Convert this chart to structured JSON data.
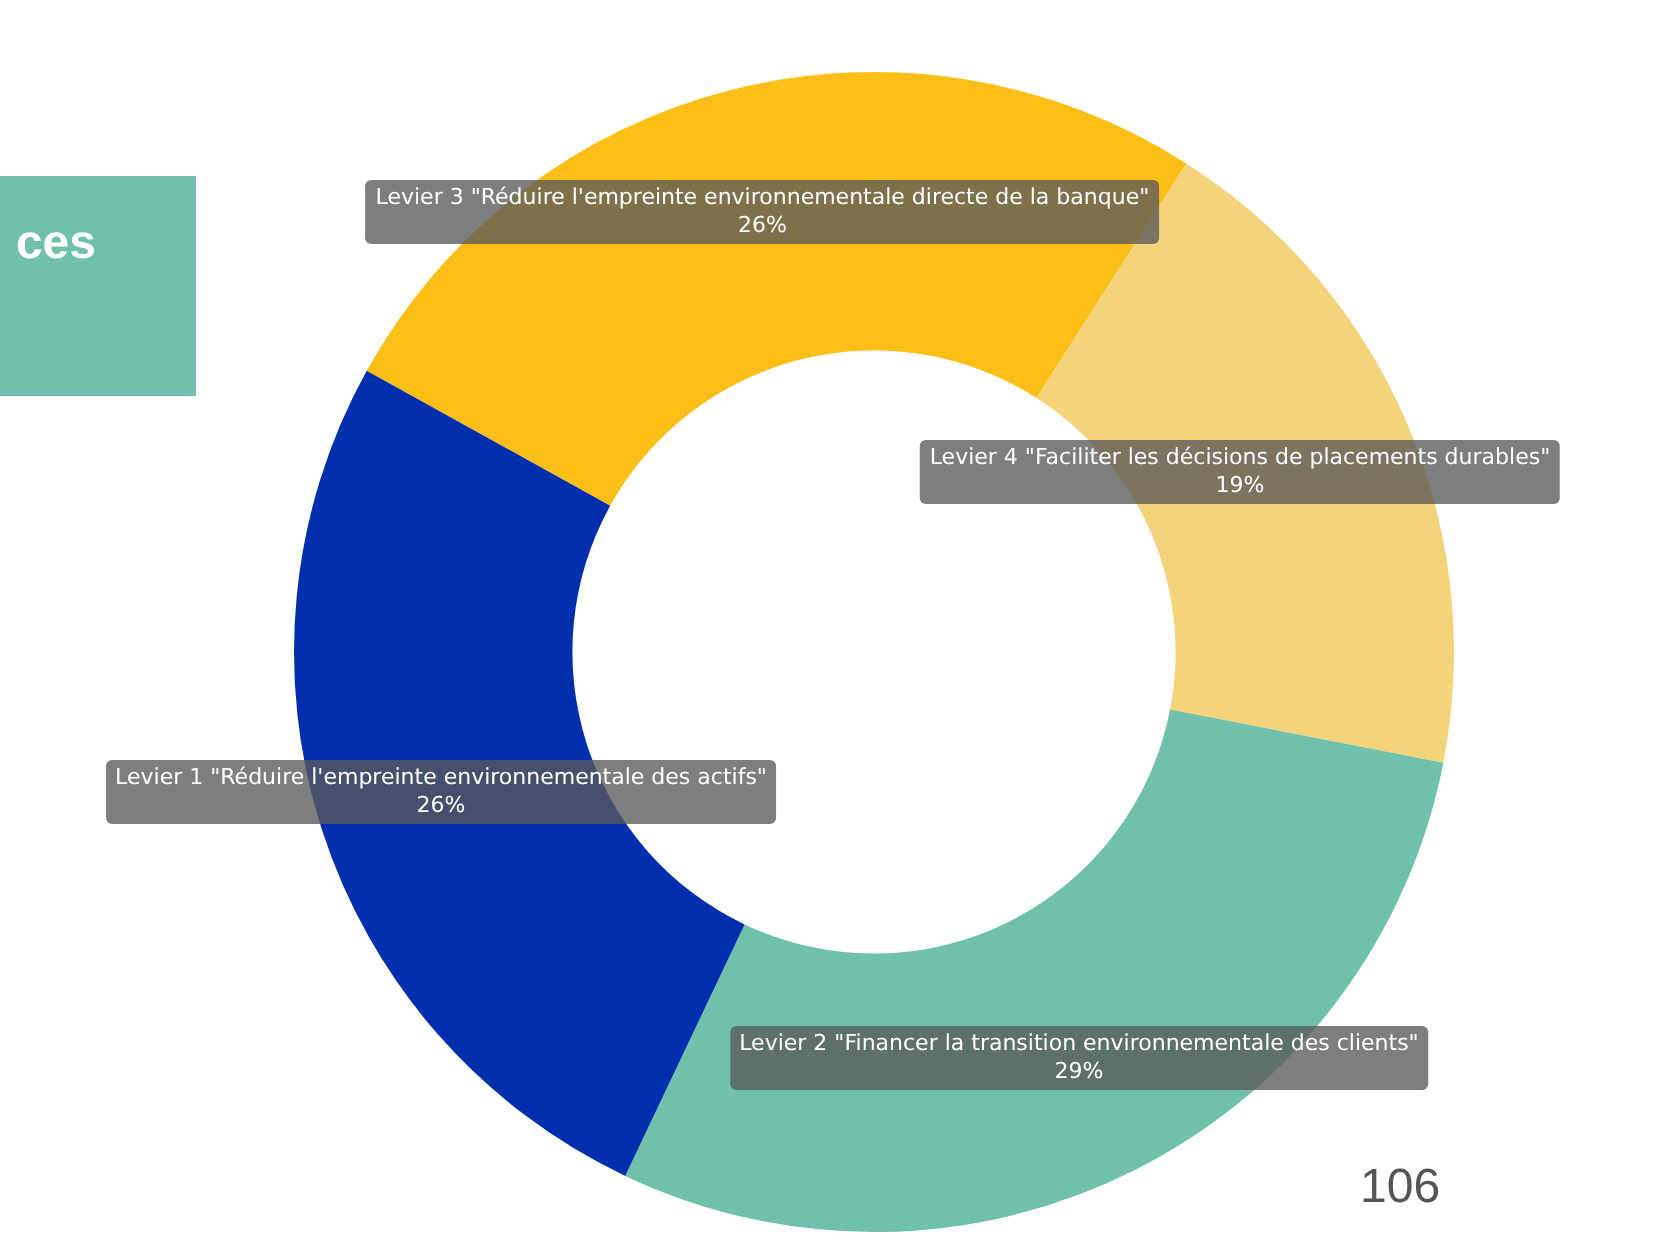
{
  "chart_data": {
    "type": "donut",
    "categories": [
      "Levier 3 \"Réduire l'empreinte environnementale directe de la banque\"",
      "Levier 4 \"Faciliter les décisions de placements durables\"",
      "Levier 2 \"Financer la transition environnementale des clients\"",
      "Levier 1 \"Réduire l'empreinte environnementale des actifs\""
    ],
    "values": [
      26,
      19,
      29,
      26
    ],
    "colors": [
      "#fcbf17",
      "#f4d37b",
      "#6fc1ab",
      "#002fae"
    ],
    "value_labels": [
      "26%",
      "19%",
      "29%",
      "26%"
    ],
    "legend": false,
    "annotations": [
      "ces",
      "106"
    ]
  }
}
